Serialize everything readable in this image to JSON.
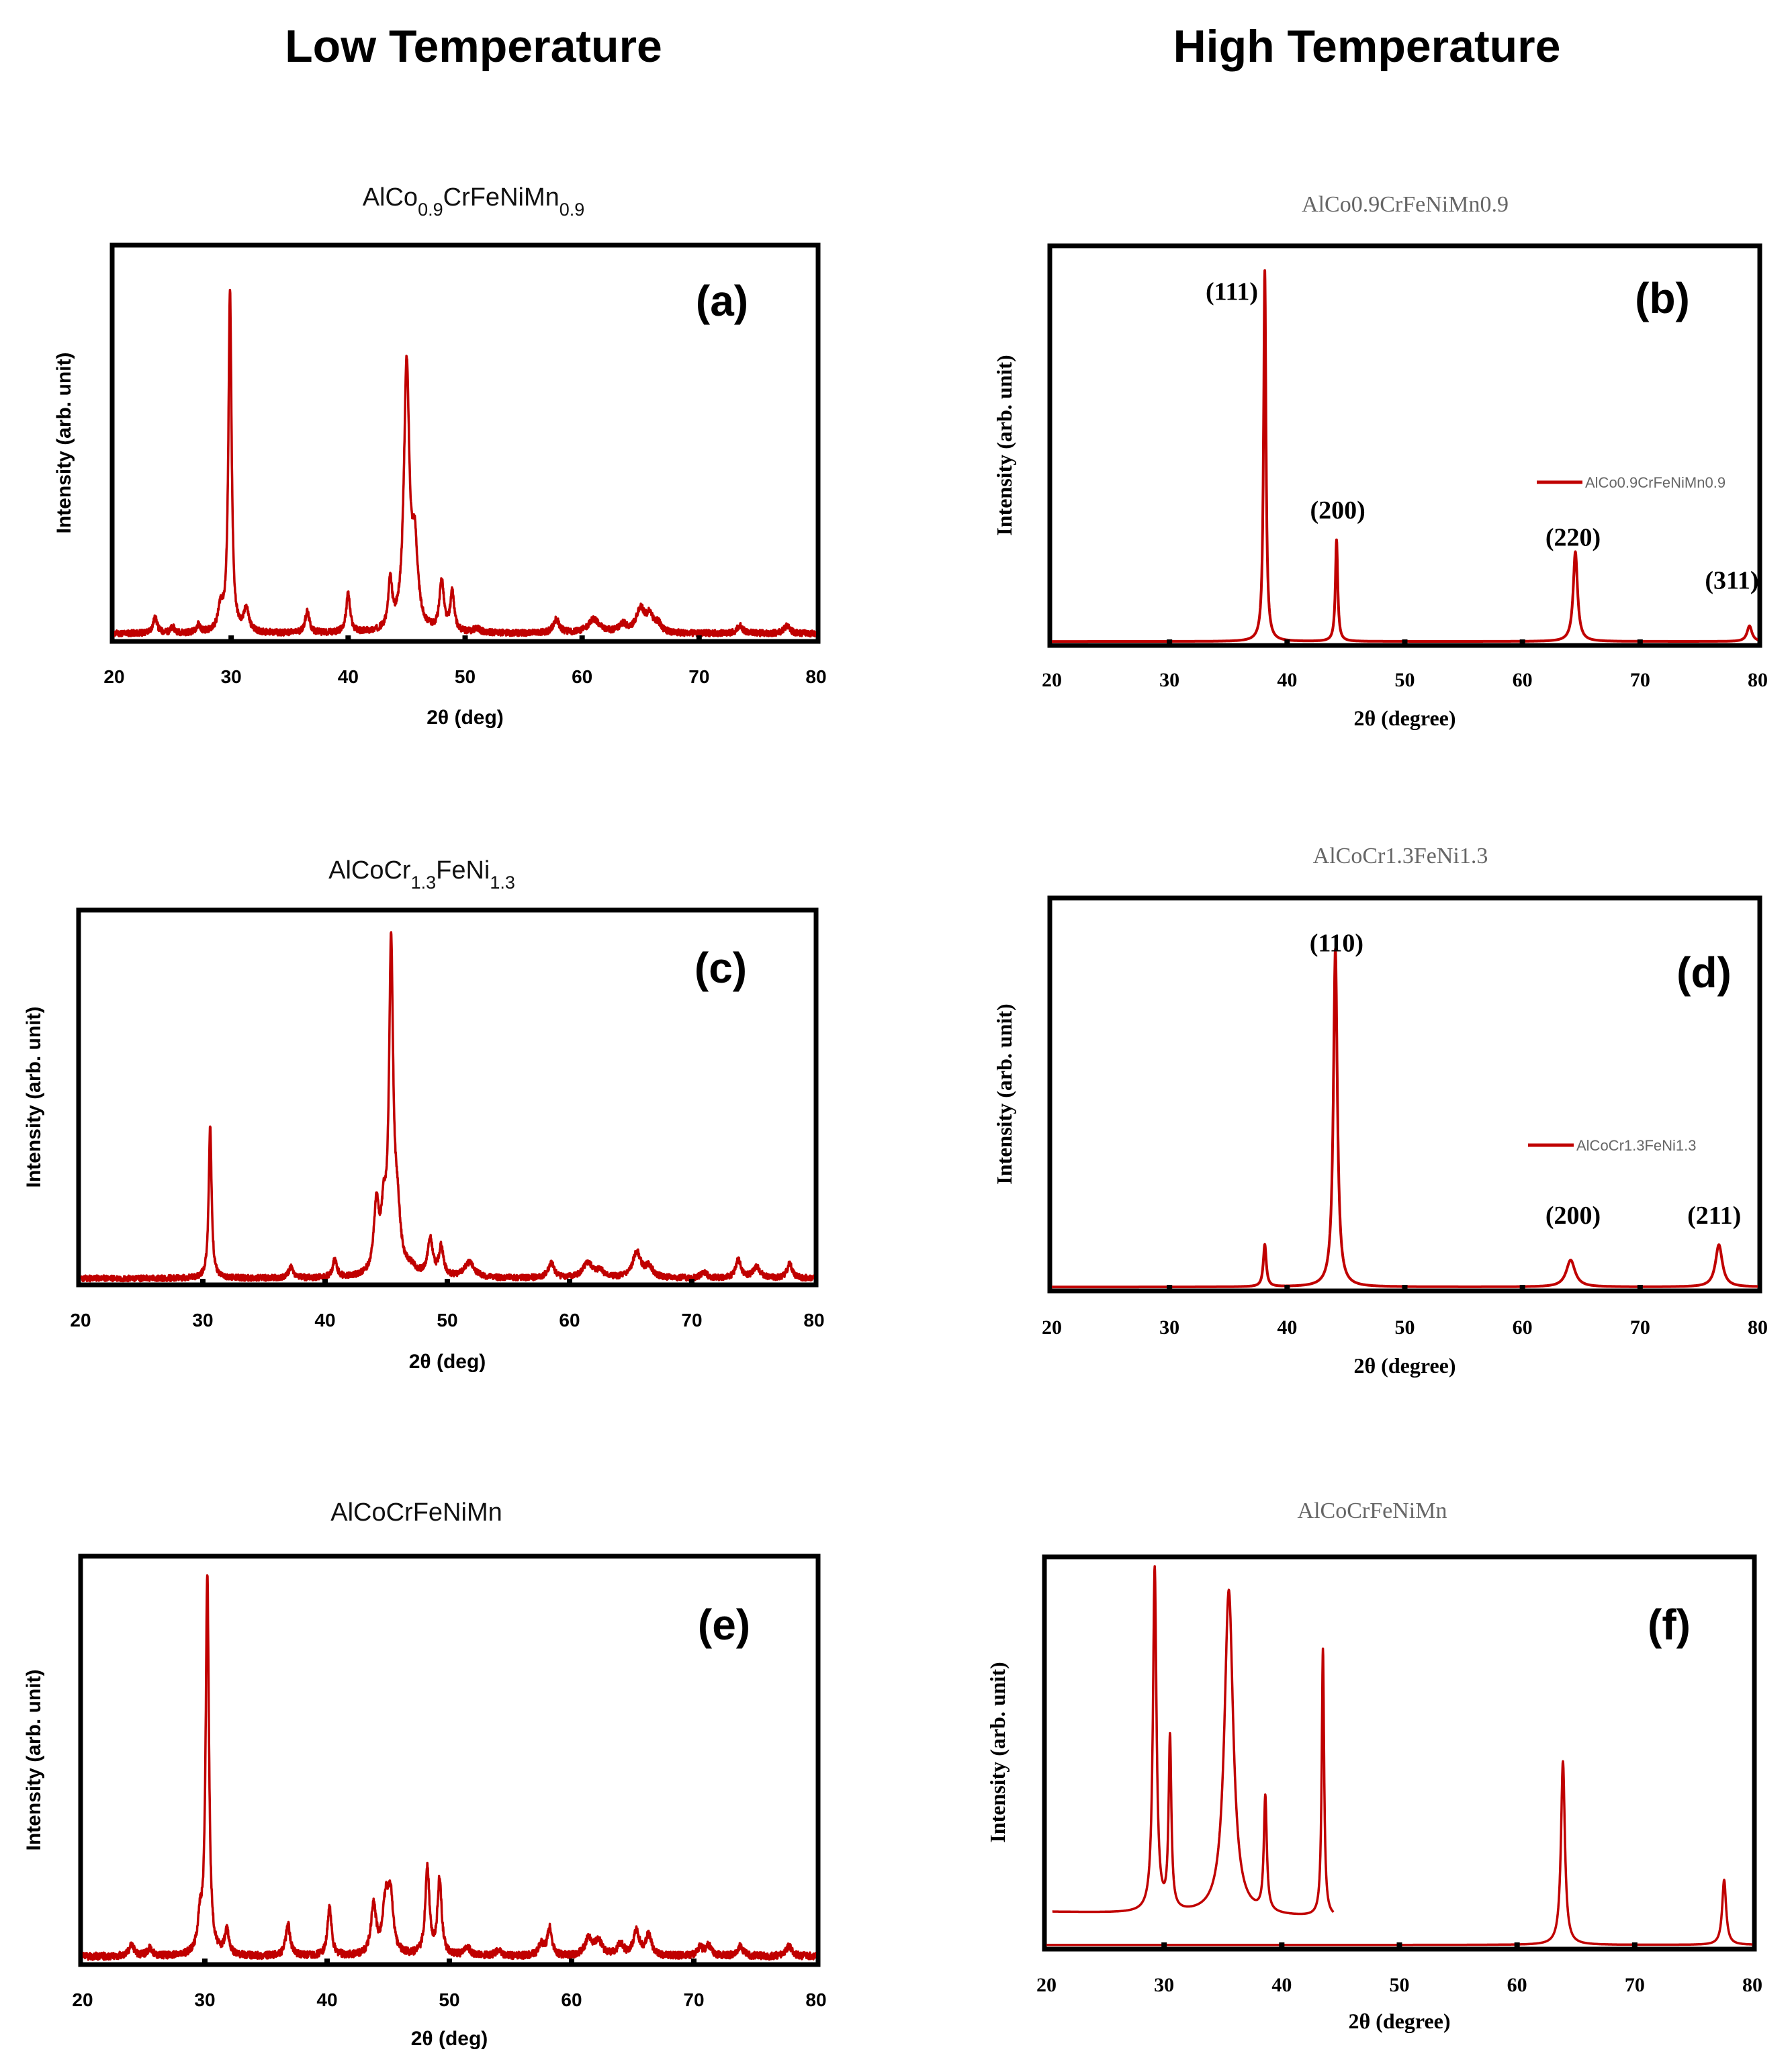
{
  "column_headers": {
    "left": "Low Temperature",
    "right": "High Temperature"
  },
  "colors": {
    "trace": "#c00000",
    "frame": "#000000"
  },
  "chart_data": [
    {
      "id": "a",
      "label": "(a)",
      "type": "line",
      "title_parts": [
        [
          "AlCo",
          "n"
        ],
        [
          "0.9",
          "s"
        ],
        [
          "CrFeNiMn",
          "n"
        ],
        [
          "0.9",
          "s"
        ]
      ],
      "title": "AlCo0.9CrFeNiMn0.9",
      "xlabel": "2θ (deg)",
      "ylabel": "Intensity (arb. unit)",
      "xlim": [
        20,
        80
      ],
      "ylim": [
        0,
        100
      ],
      "xticks": [
        "20",
        "30",
        "40",
        "50",
        "60",
        "70",
        "80"
      ],
      "baseline": 1.5,
      "noise": 0.8,
      "seed": 11,
      "peaks": [
        [
          23.5,
          4,
          0.22
        ],
        [
          25,
          1.5,
          0.2
        ],
        [
          27.2,
          2,
          0.2
        ],
        [
          29.1,
          6,
          0.25
        ],
        [
          29.9,
          88,
          0.16
        ],
        [
          31.3,
          6,
          0.25
        ],
        [
          36.5,
          5.5,
          0.22
        ],
        [
          40,
          10,
          0.2
        ],
        [
          43.6,
          12,
          0.2
        ],
        [
          45,
          68,
          0.28
        ],
        [
          45.7,
          20,
          0.3
        ],
        [
          48,
          13,
          0.22
        ],
        [
          48.9,
          10,
          0.2
        ],
        [
          51,
          1.2,
          0.3
        ],
        [
          57.8,
          3.5,
          0.3
        ],
        [
          61,
          3.5,
          0.6
        ],
        [
          63.5,
          2,
          0.4
        ],
        [
          65,
          6,
          0.45
        ],
        [
          65.8,
          4,
          0.35
        ],
        [
          66.5,
          2,
          0.3
        ],
        [
          73.5,
          2,
          0.3
        ],
        [
          77.5,
          2,
          0.3
        ]
      ]
    },
    {
      "id": "b",
      "label": "(b)",
      "type": "line",
      "title": "AlCo0.9CrFeNiMn0.9",
      "xlabel": "2θ (degree)",
      "ylabel": "Intensity (arb. unit)",
      "xlim": [
        20,
        80
      ],
      "ylim": [
        0,
        100
      ],
      "xticks": [
        "20",
        "30",
        "40",
        "50",
        "60",
        "70",
        "80"
      ],
      "baseline": 0.5,
      "noise": 0,
      "seed": 0,
      "legend": "AlCo0.9CrFeNiMn0.9",
      "peaks": [
        [
          38.1,
          95,
          0.12
        ],
        [
          44.2,
          26,
          0.12
        ],
        [
          64.5,
          23,
          0.22
        ],
        [
          79.3,
          4,
          0.25
        ]
      ],
      "peak_labels": [
        {
          "text": "(111)",
          "x": 35.3,
          "y": 88
        },
        {
          "text": "(200)",
          "x": 44.3,
          "y": 32
        },
        {
          "text": "(220)",
          "x": 64.3,
          "y": 25
        },
        {
          "text": "(311)",
          "x": 77.8,
          "y": 14
        }
      ]
    },
    {
      "id": "c",
      "label": "(c)",
      "type": "line",
      "title_parts": [
        [
          "AlCoCr",
          "n"
        ],
        [
          "1.3",
          "s"
        ],
        [
          "FeNi",
          "n"
        ],
        [
          "1.3",
          "s"
        ]
      ],
      "title": "AlCoCr1.3FeNi1.3",
      "xlabel": "2θ (deg)",
      "ylabel": "Intensity (arb. unit)",
      "xlim": [
        20,
        80
      ],
      "ylim": [
        0,
        100
      ],
      "xticks": [
        "20",
        "30",
        "40",
        "50",
        "60",
        "70",
        "80"
      ],
      "baseline": 1.2,
      "noise": 0.8,
      "seed": 23,
      "peaks": [
        [
          30.6,
          42,
          0.14
        ],
        [
          37.2,
          3,
          0.22
        ],
        [
          40.8,
          5,
          0.2
        ],
        [
          44.2,
          18,
          0.25
        ],
        [
          44.8,
          14,
          0.25
        ],
        [
          45.4,
          88,
          0.2
        ],
        [
          45.9,
          15,
          0.3
        ],
        [
          47,
          2,
          0.5
        ],
        [
          48.6,
          10,
          0.25
        ],
        [
          49.5,
          8,
          0.22
        ],
        [
          51.8,
          4,
          0.5
        ],
        [
          58.5,
          4,
          0.3
        ],
        [
          61.5,
          4,
          0.5
        ],
        [
          62.5,
          2,
          0.3
        ],
        [
          65.5,
          7,
          0.4
        ],
        [
          66.5,
          3,
          0.35
        ],
        [
          71,
          1.5,
          0.3
        ],
        [
          73.8,
          5,
          0.25
        ],
        [
          75.3,
          3,
          0.35
        ],
        [
          78,
          4,
          0.25
        ]
      ]
    },
    {
      "id": "d",
      "label": "(d)",
      "type": "line",
      "title": "AlCoCr1.3FeNi1.3",
      "xlabel": "2θ (degree)",
      "ylabel": "Intensity (arb. unit)",
      "xlim": [
        20,
        80
      ],
      "ylim": [
        0,
        100
      ],
      "xticks": [
        "20",
        "30",
        "40",
        "50",
        "60",
        "70",
        "80"
      ],
      "baseline": 0.5,
      "noise": 0,
      "seed": 0,
      "legend": "AlCoCr1.3FeNi1.3",
      "peaks": [
        [
          38.1,
          11,
          0.15
        ],
        [
          44.1,
          88,
          0.2
        ],
        [
          64.1,
          7,
          0.45
        ],
        [
          76.7,
          11,
          0.35
        ]
      ],
      "peak_labels": [
        {
          "text": "(110)",
          "x": 44.2,
          "y": 88
        },
        {
          "text": "(200)",
          "x": 64.3,
          "y": 17
        },
        {
          "text": "(211)",
          "x": 76.3,
          "y": 17
        }
      ]
    },
    {
      "id": "e",
      "label": "(e)",
      "type": "line",
      "title": "AlCoCrFeNiMn",
      "xlabel": "2θ (deg)",
      "ylabel": "Intensity (arb. unit)",
      "xlim": [
        20,
        80
      ],
      "ylim": [
        0,
        100
      ],
      "xticks": [
        "20",
        "30",
        "40",
        "50",
        "60",
        "70",
        "80"
      ],
      "baseline": 1.5,
      "noise": 0.9,
      "seed": 37,
      "peaks": [
        [
          24,
          3,
          0.25
        ],
        [
          25.5,
          2,
          0.25
        ],
        [
          29.6,
          8,
          0.22
        ],
        [
          30.2,
          95,
          0.16
        ],
        [
          31.8,
          6,
          0.22
        ],
        [
          36.8,
          8,
          0.22
        ],
        [
          40.2,
          12,
          0.2
        ],
        [
          43.8,
          12,
          0.25
        ],
        [
          44.8,
          13,
          0.3
        ],
        [
          45.2,
          13,
          0.25
        ],
        [
          48.2,
          22,
          0.2
        ],
        [
          49.2,
          19,
          0.2
        ],
        [
          51.5,
          2,
          0.3
        ],
        [
          54,
          1.5,
          0.3
        ],
        [
          57.5,
          3,
          0.25
        ],
        [
          58.2,
          7,
          0.22
        ],
        [
          61.4,
          4.5,
          0.35
        ],
        [
          62.2,
          3.5,
          0.35
        ],
        [
          64,
          3,
          0.3
        ],
        [
          65.3,
          6,
          0.3
        ],
        [
          66.3,
          5,
          0.3
        ],
        [
          70.5,
          2,
          0.3
        ],
        [
          71.2,
          2.5,
          0.3
        ],
        [
          73.8,
          2.5,
          0.3
        ],
        [
          77.8,
          2.5,
          0.3
        ]
      ]
    },
    {
      "id": "f",
      "label": "(f)",
      "type": "line",
      "title": "AlCoCrFeNiMn",
      "xlabel": "2θ (degree)",
      "ylabel": "Intensity (arb. unit)",
      "xlim": [
        20,
        80
      ],
      "ylim": [
        0,
        100
      ],
      "xticks": [
        "20",
        "30",
        "40",
        "50",
        "60",
        "70",
        "80"
      ],
      "baseline": 0.4,
      "noise": 0,
      "seed": 0,
      "segment_a": {
        "x": [
          20.5,
          44.4
        ],
        "linear": [
          9,
          7.5
        ],
        "peaks": [
          [
            29.2,
            90,
            0.18
          ],
          [
            30.5,
            45,
            0.14
          ],
          [
            35.5,
            85,
            0.45
          ],
          [
            38.6,
            30,
            0.15
          ],
          [
            43.5,
            70,
            0.12
          ]
        ]
      },
      "segment_b": {
        "x": [
          20,
          80
        ],
        "peaks": [
          [
            63.9,
            48,
            0.2
          ],
          [
            77.6,
            17,
            0.2
          ]
        ]
      }
    }
  ]
}
